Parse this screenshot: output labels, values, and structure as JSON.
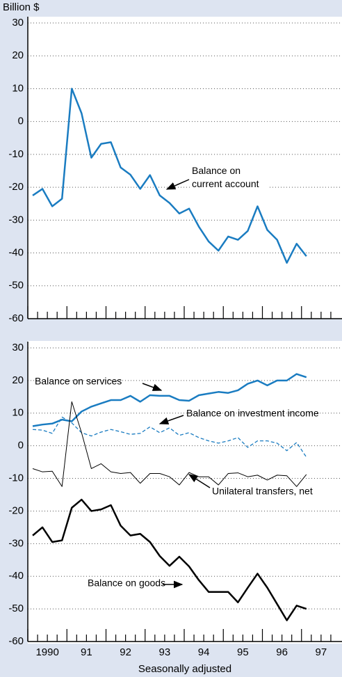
{
  "chart_data": [
    {
      "type": "line",
      "y_label": "Billion $",
      "x": [
        1990,
        1990.25,
        1990.5,
        1990.75,
        1991,
        1991.25,
        1991.5,
        1991.75,
        1992,
        1992.25,
        1992.5,
        1992.75,
        1993,
        1993.25,
        1993.5,
        1993.75,
        1994,
        1994.25,
        1994.5,
        1994.75,
        1995,
        1995.25,
        1995.5,
        1995.75,
        1996,
        1996.25,
        1996.5,
        1996.75,
        1997
      ],
      "series": [
        {
          "name": "Balance on current account",
          "color": "#1a7cc1",
          "width": 2.5,
          "dashed": false,
          "values": [
            -22.5,
            -20.5,
            -25.8,
            -23.5,
            10,
            2.5,
            -11,
            -6.8,
            -6.3,
            -14,
            -16.2,
            -20.5,
            -16.3,
            -22.5,
            -24.8,
            -28,
            -26.5,
            -32,
            -36.5,
            -39.3,
            -35,
            -36,
            -33.3,
            -25.8,
            -33,
            -36,
            -43,
            -37.2,
            -41
          ]
        }
      ],
      "xlim": [
        1989.875,
        1997.875
      ],
      "ylim": [
        -60,
        30
      ],
      "yticks": [
        -60,
        -50,
        -40,
        -30,
        -20,
        -10,
        0,
        10,
        20,
        30
      ],
      "grid": true
    },
    {
      "type": "line",
      "x_label": "Seasonally adjusted",
      "x": [
        1990,
        1990.25,
        1990.5,
        1990.75,
        1991,
        1991.25,
        1991.5,
        1991.75,
        1992,
        1992.25,
        1992.5,
        1992.75,
        1993,
        1993.25,
        1993.5,
        1993.75,
        1994,
        1994.25,
        1994.5,
        1994.75,
        1995,
        1995.25,
        1995.5,
        1995.75,
        1996,
        1996.25,
        1996.5,
        1996.75,
        1997
      ],
      "series": [
        {
          "name": "Balance on services",
          "color": "#1a7cc1",
          "width": 2.5,
          "dashed": false,
          "values": [
            6,
            6.5,
            6.8,
            8,
            7.5,
            10.5,
            12,
            13,
            14,
            14,
            15.3,
            13.5,
            15.5,
            15.3,
            15.3,
            14,
            13.8,
            15.5,
            16,
            16.5,
            16.2,
            17,
            19,
            20,
            18.5,
            20,
            20,
            22,
            21
          ]
        },
        {
          "name": "Balance on investment income",
          "color": "#1a7cc1",
          "width": 1.3,
          "dashed": true,
          "values": [
            5,
            4.8,
            3.8,
            8.8,
            7,
            4,
            3,
            4.2,
            5,
            4.3,
            3.5,
            3.8,
            5.8,
            4,
            5.5,
            3.2,
            4,
            2.5,
            1.5,
            0.8,
            1.5,
            2.5,
            -0.5,
            1.5,
            1.5,
            0.8,
            -1.5,
            1,
            -3.5
          ]
        },
        {
          "name": "Unilateral transfers, net",
          "color": "#000000",
          "width": 1,
          "dashed": false,
          "values": [
            -7,
            -8,
            -7.8,
            -12.5,
            13.5,
            4,
            -7,
            -5.5,
            -8,
            -8.5,
            -8.2,
            -11.5,
            -8.5,
            -8.5,
            -9.5,
            -12,
            -8.2,
            -9.5,
            -9.5,
            -12,
            -8.5,
            -8.3,
            -9.5,
            -9,
            -10.5,
            -9,
            -9.2,
            -12.5,
            -8.8
          ]
        },
        {
          "name": "Balance on goods",
          "color": "#000000",
          "width": 2.5,
          "dashed": false,
          "values": [
            -27.5,
            -25,
            -29.5,
            -29,
            -19,
            -16.5,
            -20,
            -19.5,
            -18.2,
            -24.5,
            -27.5,
            -27,
            -29.5,
            -33.8,
            -36.8,
            -34,
            -37,
            -41.2,
            -44.8,
            -44.8,
            -44.8,
            -48,
            -43.5,
            -39.2,
            -43.5,
            -48.5,
            -53.5,
            -49,
            -50
          ]
        }
      ],
      "xlim": [
        1989.875,
        1997.875
      ],
      "xticks": [
        {
          "value": 1990.375,
          "label": "1990"
        },
        {
          "value": 1991.375,
          "label": "91"
        },
        {
          "value": 1992.375,
          "label": "92"
        },
        {
          "value": 1993.375,
          "label": "93"
        },
        {
          "value": 1994.375,
          "label": "94"
        },
        {
          "value": 1995.375,
          "label": "95"
        },
        {
          "value": 1996.375,
          "label": "96"
        },
        {
          "value": 1997.375,
          "label": "97"
        }
      ],
      "ylim": [
        -60,
        30
      ],
      "yticks": [
        -60,
        -50,
        -40,
        -30,
        -20,
        -10,
        0,
        10,
        20,
        30
      ],
      "grid": true
    }
  ]
}
